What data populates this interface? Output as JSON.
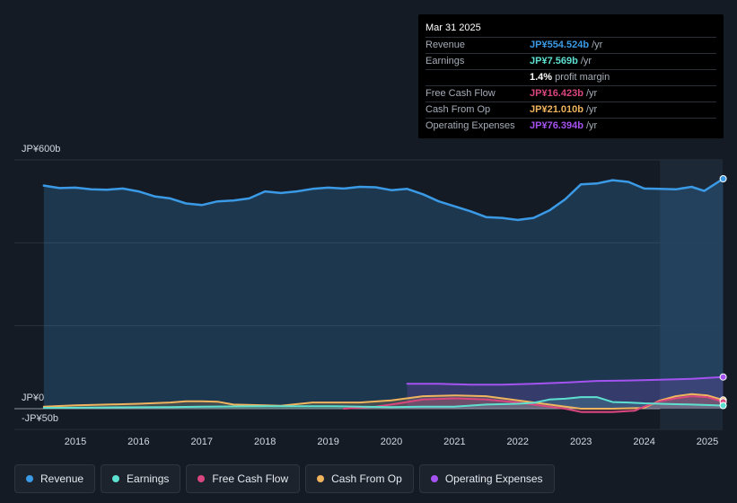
{
  "tooltip": {
    "date": "Mar 31 2025",
    "rows": [
      {
        "label": "Revenue",
        "value": "JP¥554.524b",
        "unit": "/yr",
        "color": "#3b9ae6"
      },
      {
        "label": "Earnings",
        "value": "JP¥7.569b",
        "unit": "/yr",
        "color": "#5ee0d1"
      },
      {
        "label": "",
        "value": "1.4%",
        "unit": "profit margin",
        "color": "#ffffff"
      },
      {
        "label": "Free Cash Flow",
        "value": "JP¥16.423b",
        "unit": "/yr",
        "color": "#d9477e"
      },
      {
        "label": "Cash From Op",
        "value": "JP¥21.010b",
        "unit": "/yr",
        "color": "#f0b45e"
      },
      {
        "label": "Operating Expenses",
        "value": "JP¥76.394b",
        "unit": "/yr",
        "color": "#a453f0"
      }
    ]
  },
  "chart_data": {
    "type": "area",
    "title": "",
    "ylabel": "JPY",
    "ylim": [
      -50,
      600
    ],
    "y_axis_labels": [
      "JP¥600b",
      "JP¥0",
      "-JP¥50b"
    ],
    "x_ticks": [
      "2015",
      "2016",
      "2017",
      "2018",
      "2019",
      "2020",
      "2021",
      "2022",
      "2023",
      "2024",
      "2025"
    ],
    "highlight_from": 2024.25,
    "series": [
      {
        "name": "Revenue",
        "color": "#3b9ae6",
        "fill": true,
        "points": [
          [
            2014.5,
            538
          ],
          [
            2014.75,
            532
          ],
          [
            2015.0,
            533
          ],
          [
            2015.25,
            529
          ],
          [
            2015.5,
            528
          ],
          [
            2015.75,
            531
          ],
          [
            2016.0,
            524
          ],
          [
            2016.25,
            512
          ],
          [
            2016.5,
            507
          ],
          [
            2016.75,
            495
          ],
          [
            2017.0,
            491
          ],
          [
            2017.25,
            500
          ],
          [
            2017.5,
            502
          ],
          [
            2017.75,
            507
          ],
          [
            2018.0,
            524
          ],
          [
            2018.25,
            520
          ],
          [
            2018.5,
            524
          ],
          [
            2018.75,
            530
          ],
          [
            2019.0,
            533
          ],
          [
            2019.25,
            531
          ],
          [
            2019.5,
            535
          ],
          [
            2019.75,
            534
          ],
          [
            2020.0,
            527
          ],
          [
            2020.25,
            530
          ],
          [
            2020.5,
            517
          ],
          [
            2020.75,
            500
          ],
          [
            2021.0,
            488
          ],
          [
            2021.25,
            476
          ],
          [
            2021.5,
            462
          ],
          [
            2021.75,
            460
          ],
          [
            2022.0,
            455
          ],
          [
            2022.25,
            460
          ],
          [
            2022.5,
            478
          ],
          [
            2022.75,
            505
          ],
          [
            2023.0,
            541
          ],
          [
            2023.25,
            543
          ],
          [
            2023.5,
            551
          ],
          [
            2023.75,
            547
          ],
          [
            2024.0,
            531
          ],
          [
            2024.25,
            530
          ],
          [
            2024.5,
            529
          ],
          [
            2024.75,
            535
          ],
          [
            2024.95,
            525
          ],
          [
            2025.25,
            554.5
          ]
        ]
      },
      {
        "name": "Operating Expenses",
        "color": "#a453f0",
        "fill": true,
        "points": [
          [
            2020.25,
            60
          ],
          [
            2020.75,
            60
          ],
          [
            2021.25,
            58
          ],
          [
            2021.75,
            58
          ],
          [
            2022.25,
            60
          ],
          [
            2022.75,
            63
          ],
          [
            2023.25,
            67
          ],
          [
            2023.75,
            68
          ],
          [
            2024.25,
            70
          ],
          [
            2024.75,
            72
          ],
          [
            2025.25,
            76.4
          ]
        ]
      },
      {
        "name": "Cash From Op",
        "color": "#f0b45e",
        "fill": true,
        "points": [
          [
            2014.5,
            5
          ],
          [
            2015.0,
            8
          ],
          [
            2015.5,
            10
          ],
          [
            2016.0,
            12
          ],
          [
            2016.5,
            15
          ],
          [
            2016.75,
            18
          ],
          [
            2017.0,
            18
          ],
          [
            2017.25,
            17
          ],
          [
            2017.5,
            10
          ],
          [
            2018.0,
            8
          ],
          [
            2018.25,
            7
          ],
          [
            2018.75,
            15
          ],
          [
            2019.0,
            15
          ],
          [
            2019.5,
            15
          ],
          [
            2020.0,
            20
          ],
          [
            2020.5,
            30
          ],
          [
            2021.0,
            32
          ],
          [
            2021.5,
            30
          ],
          [
            2022.0,
            20
          ],
          [
            2022.5,
            10
          ],
          [
            2022.75,
            5
          ],
          [
            2023.0,
            0
          ],
          [
            2023.5,
            0
          ],
          [
            2024.0,
            2
          ],
          [
            2024.25,
            20
          ],
          [
            2024.5,
            30
          ],
          [
            2024.75,
            35
          ],
          [
            2025.0,
            32
          ],
          [
            2025.25,
            21
          ]
        ]
      },
      {
        "name": "Free Cash Flow",
        "color": "#d9477e",
        "fill": true,
        "points": [
          [
            2019.25,
            0
          ],
          [
            2019.75,
            5
          ],
          [
            2020.0,
            10
          ],
          [
            2020.5,
            22
          ],
          [
            2021.0,
            25
          ],
          [
            2021.5,
            22
          ],
          [
            2022.0,
            15
          ],
          [
            2022.5,
            5
          ],
          [
            2022.75,
            0
          ],
          [
            2023.0,
            -8
          ],
          [
            2023.5,
            -8
          ],
          [
            2023.85,
            -5
          ],
          [
            2024.0,
            5
          ],
          [
            2024.25,
            18
          ],
          [
            2024.5,
            25
          ],
          [
            2024.75,
            30
          ],
          [
            2025.0,
            28
          ],
          [
            2025.25,
            16.4
          ]
        ]
      },
      {
        "name": "Earnings",
        "color": "#5ee0d1",
        "fill": true,
        "points": [
          [
            2014.5,
            2
          ],
          [
            2015.5,
            3
          ],
          [
            2016.5,
            4
          ],
          [
            2017.0,
            5
          ],
          [
            2018.0,
            6
          ],
          [
            2019.0,
            6
          ],
          [
            2019.5,
            5
          ],
          [
            2020.0,
            4
          ],
          [
            2020.5,
            5
          ],
          [
            2021.0,
            5
          ],
          [
            2021.5,
            10
          ],
          [
            2022.0,
            12
          ],
          [
            2022.25,
            14
          ],
          [
            2022.5,
            22
          ],
          [
            2022.75,
            24
          ],
          [
            2023.0,
            28
          ],
          [
            2023.25,
            28
          ],
          [
            2023.5,
            16
          ],
          [
            2023.75,
            15
          ],
          [
            2024.0,
            13
          ],
          [
            2024.25,
            12
          ],
          [
            2024.75,
            10
          ],
          [
            2025.25,
            7.6
          ]
        ]
      }
    ]
  },
  "legend": [
    {
      "label": "Revenue",
      "color": "#3b9ae6"
    },
    {
      "label": "Earnings",
      "color": "#5ee0d1"
    },
    {
      "label": "Free Cash Flow",
      "color": "#d9477e"
    },
    {
      "label": "Cash From Op",
      "color": "#f0b45e"
    },
    {
      "label": "Operating Expenses",
      "color": "#a453f0"
    }
  ]
}
